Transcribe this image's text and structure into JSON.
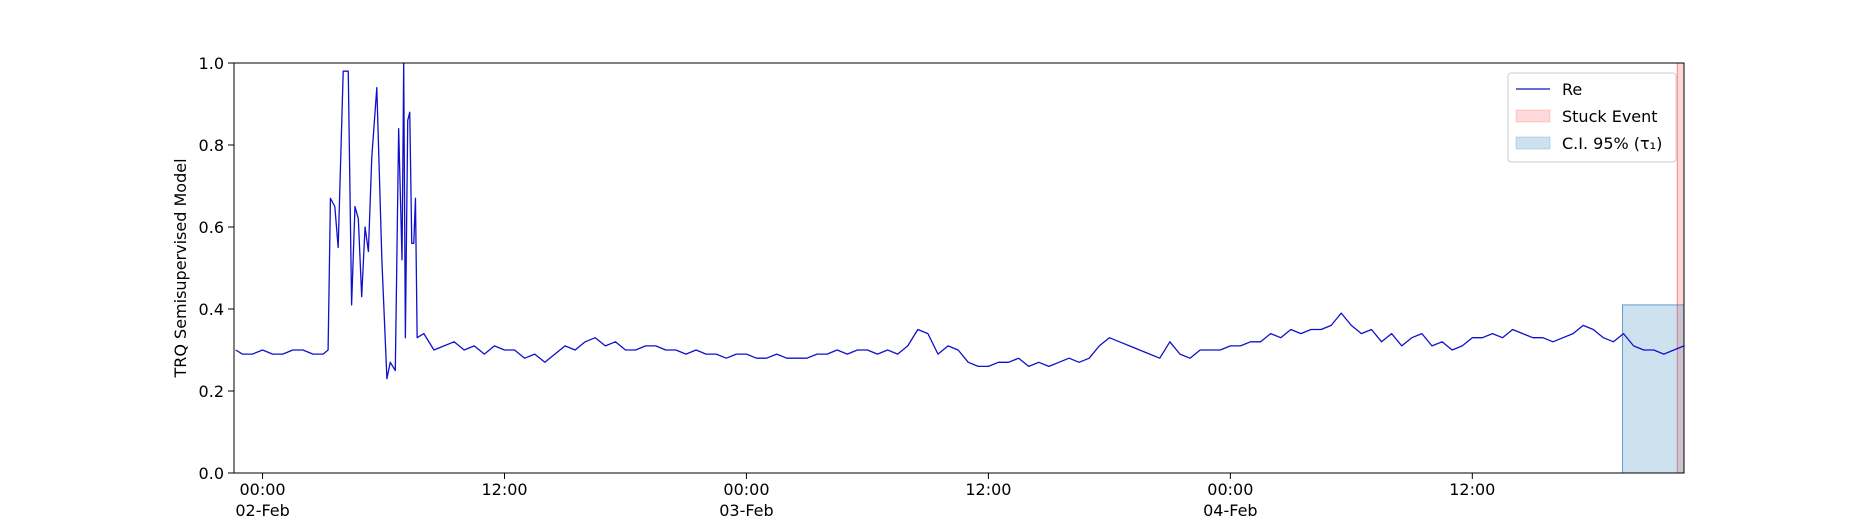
{
  "chart_data": {
    "type": "line",
    "ylabel": "TRQ Semisupervised Model",
    "xlim": [
      "1900-02-01 22:35",
      "1900-02-04 22:30"
    ],
    "ylim": [
      0,
      1
    ],
    "yticks": [
      {
        "value": 0,
        "label": "0.0"
      },
      0.2,
      0.4,
      0.6,
      0.8,
      {
        "value": 1,
        "label": "1.0"
      }
    ],
    "xticks": [
      {
        "value": "1900-02-02 00:00",
        "label": "00:00\n02-Feb\n1900"
      },
      {
        "value": "1900-02-02 12:00",
        "label": "12:00"
      },
      {
        "value": "1900-02-03 00:00",
        "label": "00:00\n03-Feb"
      },
      {
        "value": "1900-02-03 12:00",
        "label": "12:00"
      },
      {
        "value": "1900-02-04 00:00",
        "label": "00:00\n04-Feb"
      },
      {
        "value": "1900-02-04 12:00",
        "label": "12:00"
      }
    ],
    "grid": false,
    "legend": "upper right",
    "x": [
      "1900-02-01 22:40",
      "1900-02-01 23:00",
      "1900-02-01 23:30",
      "1900-02-02 00:00",
      "1900-02-02 00:30",
      "1900-02-02 01:00",
      "1900-02-02 01:30",
      "1900-02-02 02:00",
      "1900-02-02 02:30",
      "1900-02-02 03:00",
      "1900-02-02 03:15",
      "1900-02-02 03:22",
      "1900-02-02 03:35",
      "1900-02-02 03:45",
      "1900-02-02 04:00",
      "1900-02-02 04:15",
      "1900-02-02 04:25",
      "1900-02-02 04:35",
      "1900-02-02 04:45",
      "1900-02-02 04:55",
      "1900-02-02 05:05",
      "1900-02-02 05:15",
      "1900-02-02 05:25",
      "1900-02-02 05:40",
      "1900-02-02 05:55",
      "1900-02-02 06:10",
      "1900-02-02 06:20",
      "1900-02-02 06:35",
      "1900-02-02 06:45",
      "1900-02-02 06:55",
      "1900-02-02 07:00",
      "1900-02-02 07:05",
      "1900-02-02 07:12",
      "1900-02-02 07:18",
      "1900-02-02 07:24",
      "1900-02-02 07:30",
      "1900-02-02 07:35",
      "1900-02-02 07:40",
      "1900-02-02 08:00",
      "1900-02-02 08:30",
      "1900-02-02 09:00",
      "1900-02-02 09:30",
      "1900-02-02 10:00",
      "1900-02-02 10:30",
      "1900-02-02 11:00",
      "1900-02-02 11:30",
      "1900-02-02 12:00",
      "1900-02-02 12:30",
      "1900-02-02 13:00",
      "1900-02-02 13:30",
      "1900-02-02 14:00",
      "1900-02-02 14:30",
      "1900-02-02 15:00",
      "1900-02-02 15:30",
      "1900-02-02 16:00",
      "1900-02-02 16:30",
      "1900-02-02 17:00",
      "1900-02-02 17:30",
      "1900-02-02 18:00",
      "1900-02-02 18:30",
      "1900-02-02 19:00",
      "1900-02-02 19:30",
      "1900-02-02 20:00",
      "1900-02-02 20:30",
      "1900-02-02 21:00",
      "1900-02-02 21:30",
      "1900-02-02 22:00",
      "1900-02-02 22:30",
      "1900-02-02 23:00",
      "1900-02-02 23:30",
      "1900-02-03 00:00",
      "1900-02-03 00:30",
      "1900-02-03 01:00",
      "1900-02-03 01:30",
      "1900-02-03 02:00",
      "1900-02-03 02:30",
      "1900-02-03 03:00",
      "1900-02-03 03:30",
      "1900-02-03 04:00",
      "1900-02-03 04:30",
      "1900-02-03 05:00",
      "1900-02-03 05:30",
      "1900-02-03 06:00",
      "1900-02-03 06:30",
      "1900-02-03 07:00",
      "1900-02-03 07:30",
      "1900-02-03 08:00",
      "1900-02-03 08:30",
      "1900-02-03 09:00",
      "1900-02-03 09:30",
      "1900-02-03 10:00",
      "1900-02-03 10:30",
      "1900-02-03 11:00",
      "1900-02-03 11:30",
      "1900-02-03 12:00",
      "1900-02-03 12:30",
      "1900-02-03 13:00",
      "1900-02-03 13:30",
      "1900-02-03 14:00",
      "1900-02-03 14:30",
      "1900-02-03 15:00",
      "1900-02-03 15:30",
      "1900-02-03 16:00",
      "1900-02-03 16:30",
      "1900-02-03 17:00",
      "1900-02-03 17:30",
      "1900-02-03 18:00",
      "1900-02-03 18:30",
      "1900-02-03 19:00",
      "1900-02-03 19:30",
      "1900-02-03 20:00",
      "1900-02-03 20:30",
      "1900-02-03 21:00",
      "1900-02-03 21:30",
      "1900-02-03 22:00",
      "1900-02-03 22:30",
      "1900-02-03 23:00",
      "1900-02-03 23:30",
      "1900-02-04 00:00",
      "1900-02-04 00:30",
      "1900-02-04 01:00",
      "1900-02-04 01:30",
      "1900-02-04 02:00",
      "1900-02-04 02:30",
      "1900-02-04 03:00",
      "1900-02-04 03:30",
      "1900-02-04 04:00",
      "1900-02-04 04:30",
      "1900-02-04 05:00",
      "1900-02-04 05:30",
      "1900-02-04 06:00",
      "1900-02-04 06:30",
      "1900-02-04 07:00",
      "1900-02-04 07:30",
      "1900-02-04 08:00",
      "1900-02-04 08:30",
      "1900-02-04 09:00",
      "1900-02-04 09:30",
      "1900-02-04 10:00",
      "1900-02-04 10:30",
      "1900-02-04 11:00",
      "1900-02-04 11:30",
      "1900-02-04 12:00",
      "1900-02-04 12:30",
      "1900-02-04 13:00",
      "1900-02-04 13:30",
      "1900-02-04 14:00",
      "1900-02-04 14:30",
      "1900-02-04 15:00",
      "1900-02-04 15:30",
      "1900-02-04 16:00",
      "1900-02-04 16:30",
      "1900-02-04 17:00",
      "1900-02-04 17:30",
      "1900-02-04 18:00",
      "1900-02-04 18:30",
      "1900-02-04 19:00",
      "1900-02-04 19:30",
      "1900-02-04 20:00",
      "1900-02-04 20:30",
      "1900-02-04 21:00",
      "1900-02-04 21:30",
      "1900-02-04 22:00",
      "1900-02-04 22:30"
    ],
    "series": [
      {
        "name": "Re",
        "color": "#1010cc",
        "values": [
          0.3,
          0.29,
          0.29,
          0.3,
          0.29,
          0.29,
          0.3,
          0.3,
          0.29,
          0.29,
          0.3,
          0.67,
          0.65,
          0.55,
          0.98,
          0.98,
          0.41,
          0.65,
          0.62,
          0.43,
          0.6,
          0.54,
          0.77,
          0.94,
          0.52,
          0.23,
          0.27,
          0.25,
          0.84,
          0.52,
          1.0,
          0.33,
          0.86,
          0.88,
          0.56,
          0.56,
          0.67,
          0.33,
          0.34,
          0.3,
          0.31,
          0.32,
          0.3,
          0.31,
          0.29,
          0.31,
          0.3,
          0.3,
          0.28,
          0.29,
          0.27,
          0.29,
          0.31,
          0.3,
          0.32,
          0.33,
          0.31,
          0.32,
          0.3,
          0.3,
          0.31,
          0.31,
          0.3,
          0.3,
          0.29,
          0.3,
          0.29,
          0.29,
          0.28,
          0.29,
          0.29,
          0.28,
          0.28,
          0.29,
          0.28,
          0.28,
          0.28,
          0.29,
          0.29,
          0.3,
          0.29,
          0.3,
          0.3,
          0.29,
          0.3,
          0.29,
          0.31,
          0.35,
          0.34,
          0.29,
          0.31,
          0.3,
          0.27,
          0.26,
          0.26,
          0.27,
          0.27,
          0.28,
          0.26,
          0.27,
          0.26,
          0.27,
          0.28,
          0.27,
          0.28,
          0.31,
          0.33,
          0.32,
          0.31,
          0.3,
          0.29,
          0.28,
          0.32,
          0.29,
          0.28,
          0.3,
          0.3,
          0.3,
          0.31,
          0.31,
          0.32,
          0.32,
          0.34,
          0.33,
          0.35,
          0.34,
          0.35,
          0.35,
          0.36,
          0.39,
          0.36,
          0.34,
          0.35,
          0.32,
          0.34,
          0.31,
          0.33,
          0.34,
          0.31,
          0.32,
          0.3,
          0.31,
          0.33,
          0.33,
          0.34,
          0.33,
          0.35,
          0.34,
          0.33,
          0.33,
          0.32,
          0.33,
          0.34,
          0.36,
          0.35,
          0.33,
          0.32,
          0.34,
          0.31,
          0.3,
          0.3,
          0.29,
          0.3,
          0.31
        ]
      }
    ],
    "spans": [
      {
        "name": "Stuck Event",
        "color": "#ff0000",
        "alpha": 0.15,
        "x": [
          "1900-02-04 22:10",
          "1900-02-04 22:30"
        ],
        "ylim": [
          0,
          1
        ]
      },
      {
        "name": "C.I. 95% (τ₁)",
        "color": "#1f77b4",
        "alpha": 0.22,
        "x": [
          "1900-02-04 19:27",
          "1900-02-04 22:30"
        ],
        "ylim": [
          0,
          0.41
        ]
      }
    ]
  }
}
